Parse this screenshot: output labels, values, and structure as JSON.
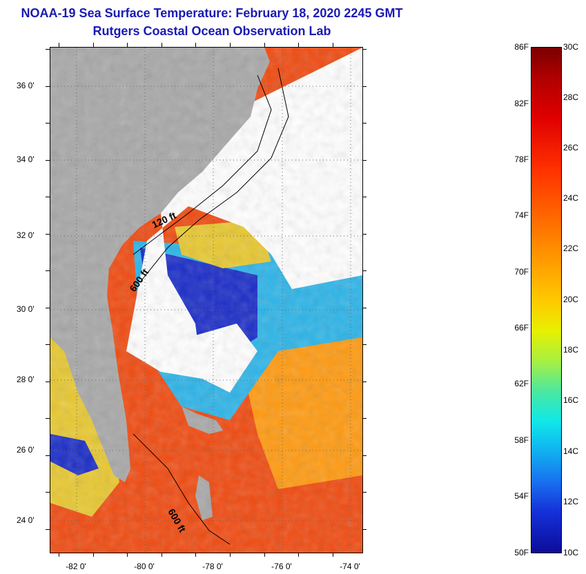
{
  "title": {
    "line1": "NOAA-19 Sea Surface Temperature:  February 18, 2020 2245 GMT",
    "line2": "Rutgers Coastal Ocean Observation Lab"
  },
  "map": {
    "lat_labels": [
      "36 0'",
      "34 0'",
      "32 0'",
      "30 0'",
      "28 0'",
      "26 0'",
      "24 0'"
    ],
    "lon_labels": [
      "-82 0'",
      "-80 0'",
      "-78 0'",
      "-76 0'",
      "-74 0'"
    ],
    "contour_labels": [
      "120 ft",
      "600 ft",
      "600 ft"
    ],
    "colors": {
      "land": "#a8a8a8",
      "cloud": "#ffffff",
      "cold": "#1a2cc8",
      "warm": "#f04a10",
      "mid": "#ff9a10"
    }
  },
  "colorbar": {
    "fahrenheit_labels": [
      "86F",
      "82F",
      "78F",
      "74F",
      "70F",
      "66F",
      "62F",
      "58F",
      "54F",
      "50F"
    ],
    "celsius_labels": [
      "30C",
      "28C",
      "26C",
      "24C",
      "22C",
      "20C",
      "18C",
      "16C",
      "14C",
      "12C",
      "10C"
    ]
  }
}
